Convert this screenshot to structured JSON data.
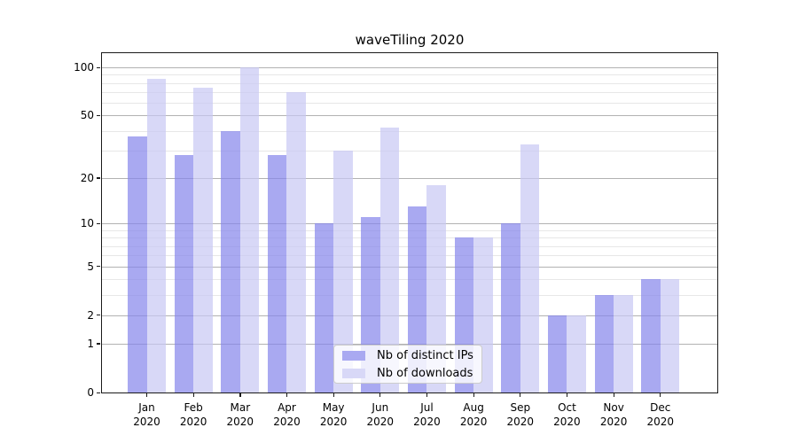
{
  "title": "waveTiling 2020",
  "chart_data": {
    "type": "bar",
    "title": "waveTiling 2020",
    "categories": [
      "Jan",
      "Feb",
      "Mar",
      "Apr",
      "May",
      "Jun",
      "Jul",
      "Aug",
      "Sep",
      "Oct",
      "Nov",
      "Dec"
    ],
    "year": "2020",
    "series": [
      {
        "name": "Nb of distinct IPs",
        "color": "#a9a9f1",
        "values": [
          37,
          28,
          40,
          28,
          10,
          11,
          13,
          8,
          10,
          2,
          3,
          4
        ]
      },
      {
        "name": "Nb of downloads",
        "color": "#d8d8f7",
        "values": [
          85,
          75,
          100,
          70,
          30,
          42,
          18,
          8,
          33,
          2,
          3,
          4
        ]
      }
    ],
    "xlabel": "",
    "ylabel": "",
    "yscale": "log1p",
    "ylim": [
      0,
      100
    ],
    "y_major_ticks": [
      100,
      50,
      20,
      10,
      5,
      2,
      1,
      0
    ],
    "y_minor_ticks": [
      3,
      4,
      6,
      7,
      8,
      9,
      30,
      40,
      60,
      70,
      80,
      90
    ],
    "grid": true,
    "legend_position": "lower center"
  },
  "colors": {
    "bar_fill_ips": "rgba(132,132,235,0.7)",
    "bar_fill_downloads": "rgba(199,199,243,0.7)",
    "grid_major": "#b2b2b2",
    "grid_minor": "#e7e7e7",
    "spine": "#1a1a1a",
    "background": "#ffffff"
  }
}
